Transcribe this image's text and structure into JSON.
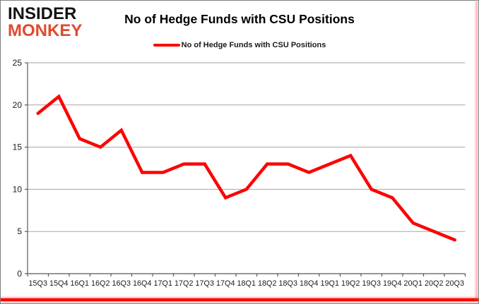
{
  "header": {
    "logo_line1": "INSIDER",
    "logo_line2": "MONKEY",
    "title": "No of Hedge Funds with CSU Positions"
  },
  "legend": {
    "label": "No of Hedge Funds with CSU Positions"
  },
  "colors": {
    "series_red": "#fe0000",
    "logo_red": "#e2492f",
    "gridline": "#a6a6a6",
    "axis": "#595959",
    "tick_label": "#1a1a1a",
    "bottom_bar": "#fe0000"
  },
  "chart_data": {
    "type": "line",
    "title": "No of Hedge Funds with CSU Positions",
    "categories": [
      "15Q3",
      "15Q4",
      "16Q1",
      "16Q2",
      "16Q3",
      "16Q4",
      "17Q1",
      "17Q2",
      "17Q3",
      "17Q4",
      "18Q1",
      "18Q2",
      "18Q3",
      "18Q4",
      "19Q1",
      "19Q2",
      "19Q3",
      "19Q4",
      "20Q1",
      "20Q2",
      "20Q3"
    ],
    "series": [
      {
        "name": "No of Hedge Funds with CSU Positions",
        "color": "#fe0000",
        "values": [
          19,
          21,
          16,
          15,
          17,
          12,
          12,
          13,
          13,
          9,
          10,
          13,
          13,
          12,
          13,
          14,
          10,
          9,
          6,
          5,
          4
        ]
      }
    ],
    "xlabel": "",
    "ylabel": "",
    "ylim": [
      0,
      25
    ],
    "yticks": [
      0,
      5,
      10,
      15,
      20,
      25
    ],
    "grid": true,
    "legend_position": "top-center"
  }
}
